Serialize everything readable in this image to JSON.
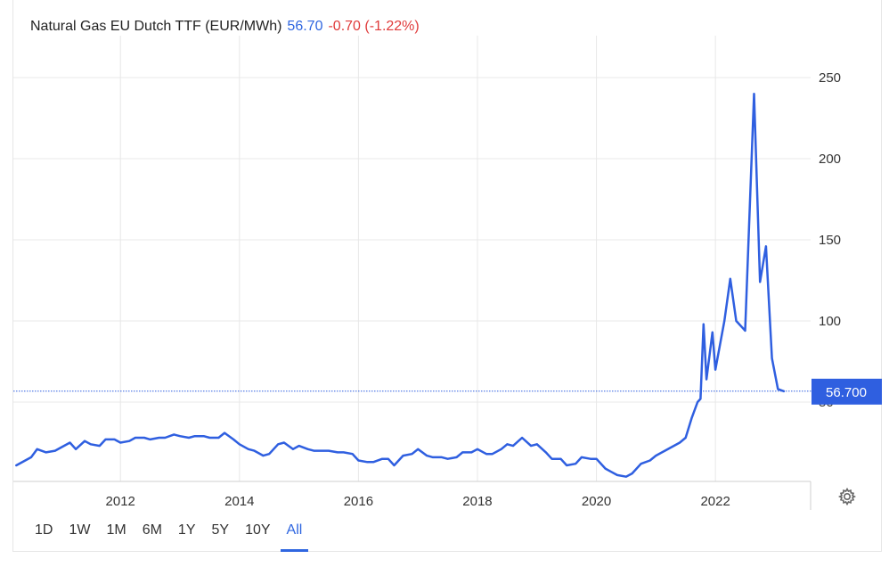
{
  "header": {
    "title": "Natural Gas EU Dutch TTF (EUR/MWh)",
    "price": "56.70",
    "change": "-0.70 (-1.22%)"
  },
  "colors": {
    "line": "#2f5fe0",
    "price": "#2f66e0",
    "negative": "#e03b3b",
    "grid": "#e8e8e8"
  },
  "current_price_label": "56.700",
  "ranges": [
    {
      "label": "1D"
    },
    {
      "label": "1W"
    },
    {
      "label": "1M"
    },
    {
      "label": "6M"
    },
    {
      "label": "1Y"
    },
    {
      "label": "5Y"
    },
    {
      "label": "10Y"
    },
    {
      "label": "All",
      "active": true
    }
  ],
  "icons": {
    "settings": "gear-icon"
  },
  "chart_data": {
    "type": "line",
    "title": "",
    "xlabel": "",
    "ylabel": "",
    "xlim": [
      2010.2,
      2023.6
    ],
    "ylim": [
      0,
      250
    ],
    "y_ticks": [
      50,
      100,
      150,
      200,
      250
    ],
    "x_ticks": [
      2012,
      2014,
      2016,
      2018,
      2020,
      2022
    ],
    "reference_value": 56.7,
    "grid": true,
    "series": [
      {
        "x": [
          2010.25,
          2010.5,
          2010.6,
          2010.75,
          2010.9,
          2011.0,
          2011.15,
          2011.25,
          2011.4,
          2011.5,
          2011.65,
          2011.75,
          2011.9,
          2012.0,
          2012.15,
          2012.25,
          2012.4,
          2012.5,
          2012.65,
          2012.75,
          2012.9,
          2013.0,
          2013.15,
          2013.25,
          2013.4,
          2013.5,
          2013.65,
          2013.75,
          2013.9,
          2014.0,
          2014.15,
          2014.25,
          2014.4,
          2014.5,
          2014.65,
          2014.75,
          2014.9,
          2015.0,
          2015.15,
          2015.25,
          2015.4,
          2015.5,
          2015.65,
          2015.75,
          2015.9,
          2016.0,
          2016.15,
          2016.25,
          2016.4,
          2016.5,
          2016.6,
          2016.75,
          2016.9,
          2017.0,
          2017.15,
          2017.25,
          2017.4,
          2017.5,
          2017.65,
          2017.75,
          2017.9,
          2018.0,
          2018.15,
          2018.25,
          2018.4,
          2018.5,
          2018.6,
          2018.75,
          2018.9,
          2019.0,
          2019.15,
          2019.25,
          2019.4,
          2019.5,
          2019.65,
          2019.75,
          2019.9,
          2020.0,
          2020.15,
          2020.25,
          2020.35,
          2020.5,
          2020.6,
          2020.75,
          2020.9,
          2021.0,
          2021.15,
          2021.25,
          2021.4,
          2021.5,
          2021.6,
          2021.7,
          2021.75,
          2021.8,
          2021.85,
          2021.95,
          2022.0,
          2022.15,
          2022.25,
          2022.35,
          2022.5,
          2022.65,
          2022.75,
          2022.85,
          2022.95,
          2023.05,
          2023.15
        ],
        "y": [
          11,
          16,
          21,
          19,
          20,
          22,
          25,
          21,
          26,
          24,
          23,
          27,
          27,
          25,
          26,
          28,
          28,
          27,
          28,
          28,
          30,
          29,
          28,
          29,
          29,
          28,
          28,
          31,
          27,
          24,
          21,
          20,
          17,
          18,
          24,
          25,
          21,
          23,
          21,
          20,
          20,
          20,
          19,
          19,
          18,
          14,
          13,
          13,
          15,
          15,
          11,
          17,
          18,
          21,
          17,
          16,
          16,
          15,
          16,
          19,
          19,
          21,
          18,
          18,
          21,
          24,
          23,
          28,
          23,
          24,
          19,
          15,
          15,
          11,
          12,
          16,
          15,
          15,
          9,
          7,
          5,
          4,
          6,
          12,
          14,
          17,
          20,
          22,
          25,
          28,
          40,
          50,
          52,
          98,
          64,
          93,
          70,
          100,
          126,
          100,
          94,
          240,
          124,
          146,
          77,
          58,
          56.7
        ]
      }
    ]
  }
}
